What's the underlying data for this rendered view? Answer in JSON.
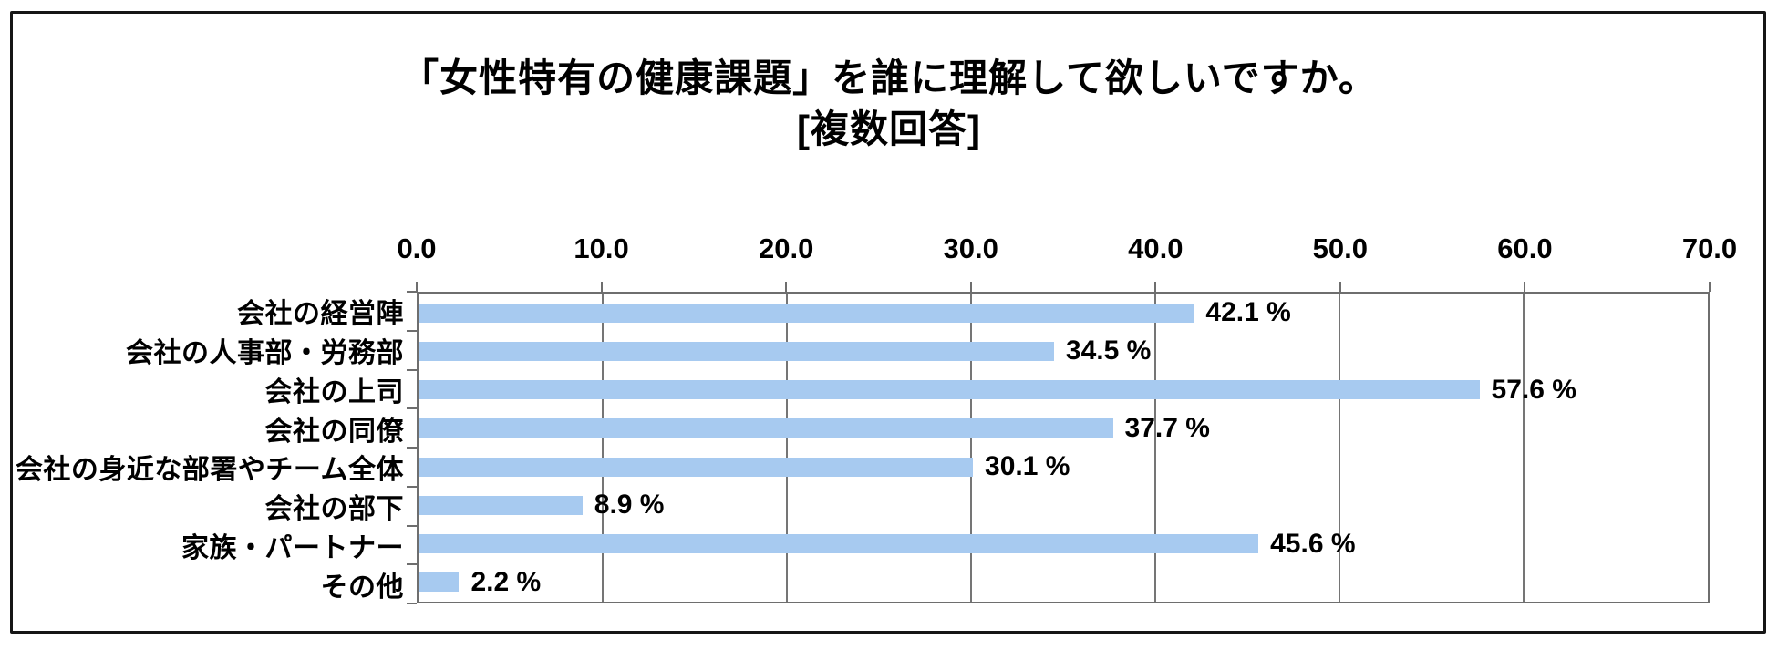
{
  "chart_data": {
    "type": "bar",
    "orientation": "horizontal",
    "title_lines": [
      "「女性特有の健康課題」を誰に理解して欲しいですか。",
      "[複数回答]"
    ],
    "categories": [
      "会社の経営陣",
      "会社の人事部・労務部",
      "会社の上司",
      "会社の同僚",
      "会社の身近な部署やチーム全体",
      "会社の部下",
      "家族・パートナー",
      "その他"
    ],
    "values": [
      42.1,
      34.5,
      57.6,
      37.7,
      30.1,
      8.9,
      45.6,
      2.2
    ],
    "value_labels": [
      "42.1 %",
      "34.5 %",
      "57.6 %",
      "37.7 %",
      "30.1 %",
      "8.9 %",
      "45.6 %",
      "2.2 %"
    ],
    "x_tick_labels": [
      "0.0",
      "10.0",
      "20.0",
      "30.0",
      "40.0",
      "50.0",
      "60.0",
      "70.0"
    ],
    "xlim": [
      0,
      70
    ],
    "x_tick_step": 10,
    "xlabel": "",
    "ylabel": "",
    "legend": "none",
    "grid": "vertical-only",
    "bar_color": "#A7CAF0",
    "gridline_color": "#757575",
    "axis_border_color": "#6e6e6e",
    "frame_color": "#161616",
    "text_color": "#000000",
    "background_color": "#ffffff"
  }
}
